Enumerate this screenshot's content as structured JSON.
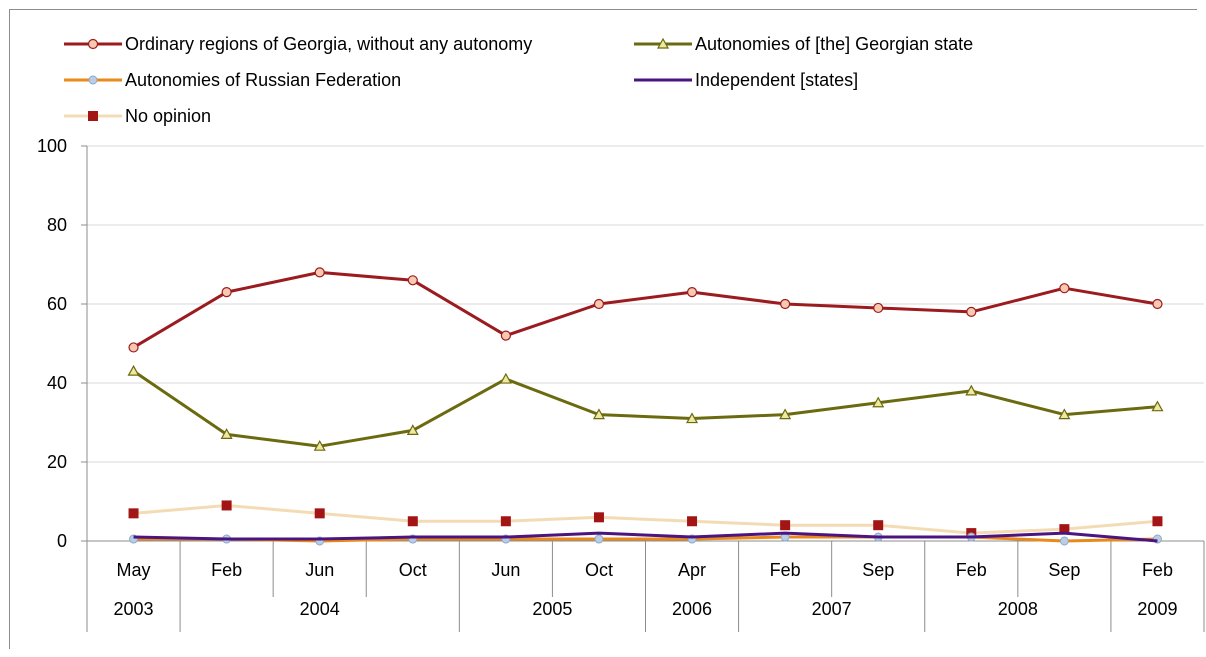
{
  "chart_data": {
    "type": "line",
    "ylim": [
      0,
      100
    ],
    "yticks": [
      0,
      20,
      40,
      60,
      80,
      100
    ],
    "grid": true,
    "legend_position": "top",
    "categories": [
      "May",
      "Feb",
      "Jun",
      "Oct",
      "Jun",
      "Oct",
      "Apr",
      "Feb",
      "Sep",
      "Feb",
      "Sep",
      "Feb"
    ],
    "year_groups": [
      {
        "label": "2003",
        "span": 1
      },
      {
        "label": "2004",
        "span": 3
      },
      {
        "label": "2005",
        "span": 2
      },
      {
        "label": "2006",
        "span": 1
      },
      {
        "label": "2007",
        "span": 2
      },
      {
        "label": "2008",
        "span": 2
      },
      {
        "label": "2009",
        "span": 1
      }
    ],
    "series": [
      {
        "name": "Ordinary regions of Georgia, without any autonomy",
        "color": "#9b1b1f",
        "marker": "circle",
        "values": [
          49,
          63,
          68,
          66,
          52,
          60,
          63,
          60,
          59,
          58,
          64,
          60
        ]
      },
      {
        "name": "Autonomies of [the] Georgian state",
        "color": "#6b6a10",
        "marker": "triangle",
        "values": [
          43,
          27,
          24,
          28,
          41,
          32,
          31,
          32,
          35,
          38,
          32,
          34
        ]
      },
      {
        "name": "Autonomies of Russian Federation",
        "color": "#e8891a",
        "marker": "circle-blue",
        "values": [
          0.5,
          0.5,
          0,
          0.5,
          0.5,
          0.5,
          0.5,
          1,
          1,
          1,
          0,
          0.5
        ]
      },
      {
        "name": "Independent [states]",
        "color": "#4b1480",
        "marker": "none",
        "values": [
          1,
          0.5,
          0.5,
          1,
          1,
          2,
          1,
          2,
          1,
          1,
          2,
          0
        ]
      },
      {
        "name": "No opinion",
        "color": "#f3dcb5",
        "marker": "square",
        "values": [
          7,
          9,
          7,
          5,
          5,
          6,
          5,
          4,
          4,
          2,
          3,
          5
        ]
      }
    ]
  }
}
